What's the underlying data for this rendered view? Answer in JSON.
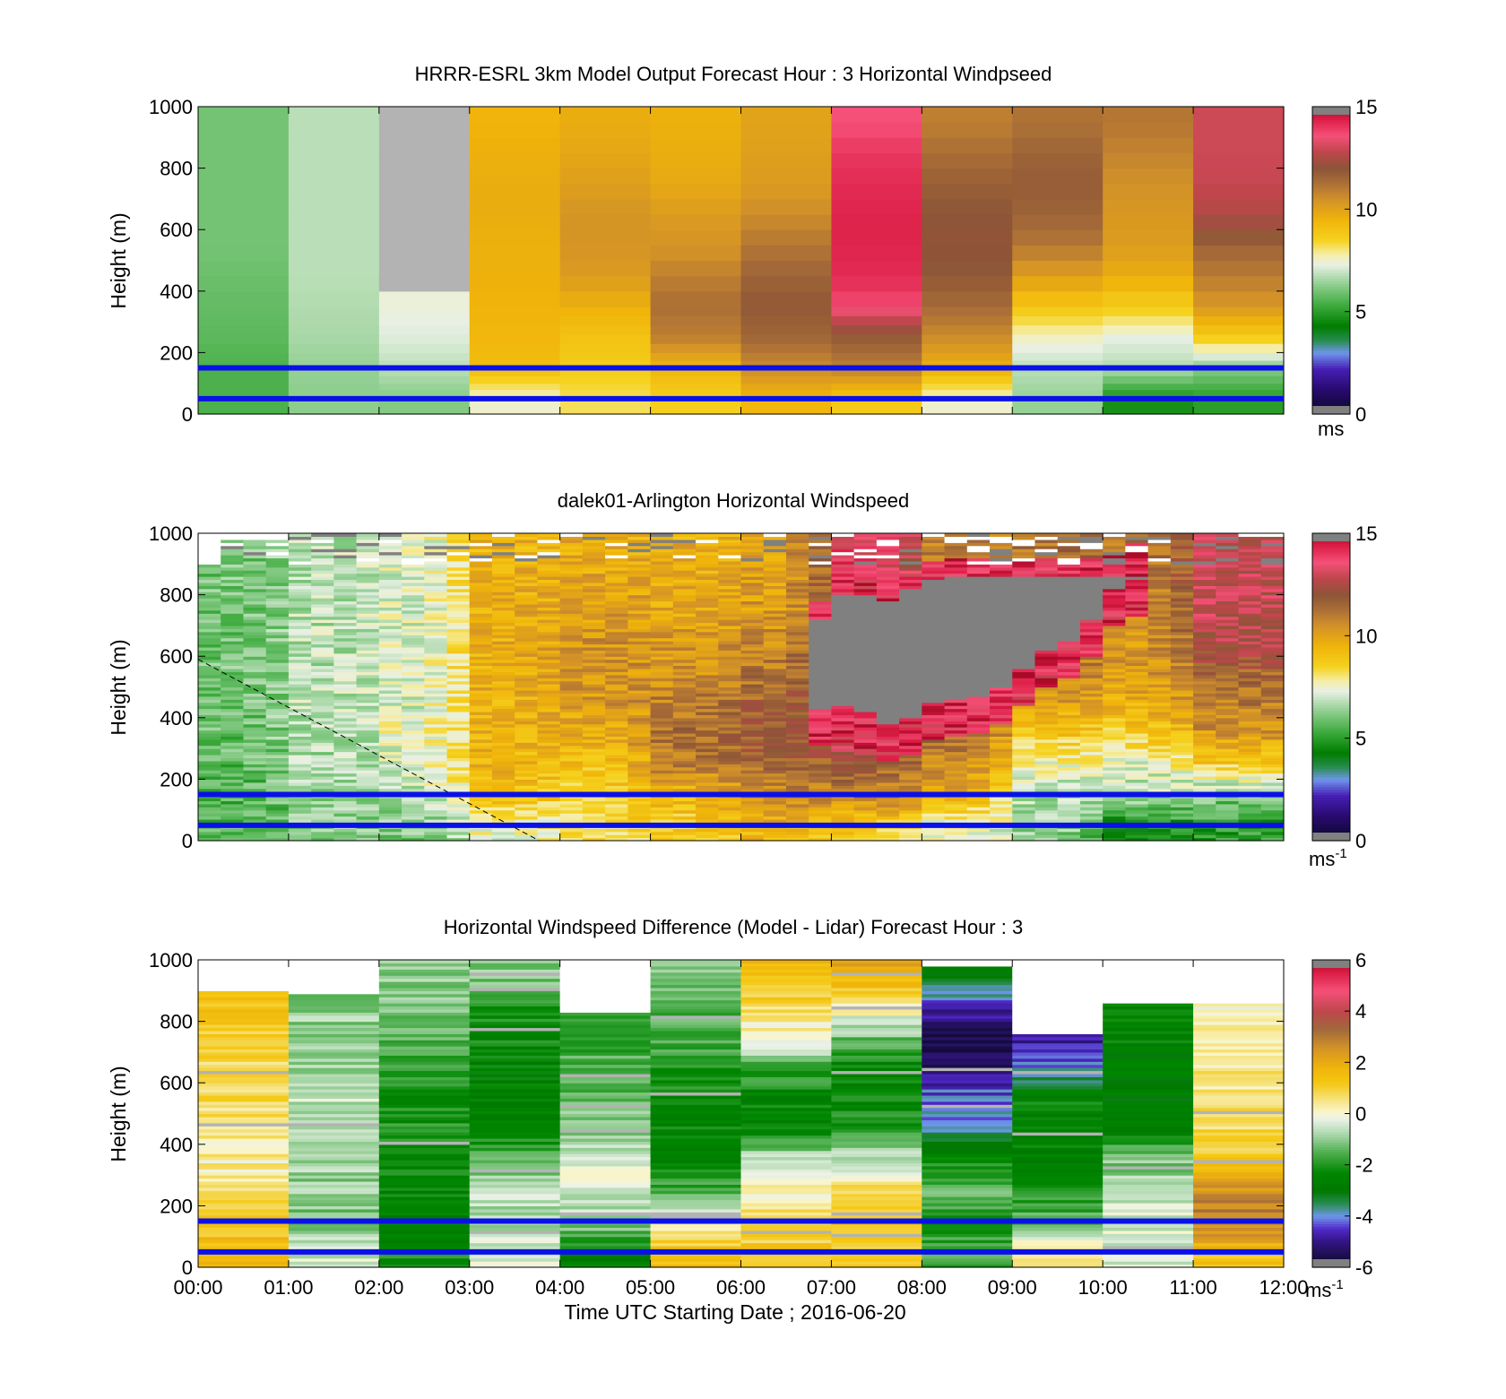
{
  "chart_data": [
    {
      "type": "heatmap",
      "title": "HRRR-ESRL 3km Model Output   Forecast Hour : 3 Horizontal Windpseed",
      "ylabel": "Height (m)",
      "xlabel": "",
      "ylim": [
        0,
        1000
      ],
      "xlim_hours": [
        0,
        12
      ],
      "yticks": [
        "0",
        "200",
        "400",
        "600",
        "800",
        "1000"
      ],
      "colorbar": {
        "range": [
          0,
          15
        ],
        "ticks": [
          "0",
          "5",
          "10",
          "15"
        ],
        "unit": "ms",
        "unit_sup": "",
        "scale": "speed"
      },
      "reference_lines_m": [
        150,
        50
      ],
      "time_columns": [
        "00:00",
        "01:00",
        "02:00",
        "03:00",
        "04:00",
        "05:00",
        "06:00",
        "07:00",
        "08:00",
        "09:00",
        "10:00",
        "11:00"
      ],
      "column_profiles_ms": [
        [
          5.5,
          5.5,
          5.7,
          5.8,
          5.9,
          6.0,
          6.0,
          6.0,
          6.0,
          6.0
        ],
        [
          6.3,
          6.4,
          6.6,
          6.7,
          6.8,
          6.8,
          6.8,
          6.8,
          6.8,
          6.8
        ],
        [
          6.2,
          6.8,
          7.2,
          7.4,
          "gap",
          "gap",
          "gap",
          "gap",
          "gap",
          "gap"
        ],
        [
          7.5,
          9.2,
          9.4,
          9.5,
          9.6,
          9.6,
          9.7,
          9.7,
          9.6,
          9.5
        ],
        [
          8.2,
          8.7,
          9.0,
          9.6,
          10.2,
          10.4,
          10.4,
          10.1,
          9.9,
          9.7
        ],
        [
          8.6,
          9.4,
          10.9,
          11.3,
          10.9,
          10.4,
          10.2,
          9.8,
          9.7,
          9.6
        ],
        [
          9.4,
          10.6,
          11.5,
          11.9,
          11.6,
          11.1,
          10.6,
          10.2,
          10.1,
          10.0
        ],
        [
          8.8,
          10.9,
          11.8,
          13.7,
          14.2,
          14.3,
          14.3,
          14.2,
          14.0,
          13.6
        ],
        [
          7.5,
          9.6,
          10.6,
          11.4,
          11.9,
          12.1,
          12.0,
          11.7,
          11.3,
          10.9
        ],
        [
          6.4,
          6.8,
          7.6,
          8.9,
          10.1,
          11.1,
          11.6,
          11.8,
          11.6,
          11.2
        ],
        [
          4.7,
          6.7,
          7.3,
          8.7,
          9.7,
          10.2,
          10.3,
          10.5,
          10.8,
          11.1
        ],
        [
          5.0,
          6.2,
          8.7,
          10.3,
          11.0,
          11.6,
          12.6,
          12.9,
          13.0,
          13.0
        ]
      ]
    },
    {
      "type": "heatmap",
      "title": "dalek01-Arlington  Horizontal Windspeed",
      "ylabel": "Height (m)",
      "xlabel": "",
      "ylim": [
        0,
        1000
      ],
      "xlim_hours": [
        0,
        12
      ],
      "yticks": [
        "0",
        "200",
        "400",
        "600",
        "800",
        "1000"
      ],
      "colorbar": {
        "range": [
          0,
          15
        ],
        "ticks": [
          "0",
          "5",
          "10",
          "15"
        ],
        "unit": "ms",
        "unit_sup": "-1",
        "scale": "speed"
      },
      "reference_lines_m": [
        150,
        50
      ],
      "time_bins_per_hour": 4,
      "max_valid_height_m": [
        900,
        980,
        980,
        980,
        1000,
        1000,
        1000,
        1000,
        1000,
        1000,
        1000,
        1000,
        1000,
        1000,
        1000,
        1000,
        1000,
        1000,
        1000,
        1000,
        1000,
        1000,
        1000,
        1000,
        1000,
        1000,
        1000,
        1000,
        1000,
        1000,
        1000,
        1000,
        1000,
        1000,
        1000,
        1000,
        1000,
        1000,
        1000,
        1000,
        1000,
        1000,
        1000,
        1000,
        1000,
        1000,
        1000,
        1000
      ],
      "saturated_region_top_m": [
        null,
        null,
        null,
        null,
        null,
        null,
        null,
        null,
        null,
        null,
        null,
        null,
        null,
        null,
        null,
        null,
        null,
        null,
        null,
        null,
        null,
        null,
        null,
        null,
        null,
        null,
        null,
        720,
        800,
        800,
        780,
        820,
        850,
        860,
        860,
        860,
        860,
        860,
        860,
        860,
        860,
        860,
        null,
        null,
        null,
        null,
        null,
        null
      ],
      "saturated_region_bottom_m": [
        null,
        null,
        null,
        null,
        null,
        null,
        null,
        null,
        null,
        null,
        null,
        null,
        null,
        null,
        null,
        null,
        null,
        null,
        null,
        null,
        null,
        null,
        null,
        null,
        null,
        null,
        null,
        430,
        440,
        420,
        380,
        400,
        450,
        460,
        470,
        500,
        560,
        620,
        650,
        720,
        820,
        850,
        null,
        null,
        null,
        null,
        null,
        null
      ],
      "note_dashed_line": true
    },
    {
      "type": "heatmap",
      "title": "Horizontal Windspeed Difference (Model - Lidar) Forecast Hour : 3",
      "ylabel": "Height (m)",
      "xlabel": "Time UTC  Starting Date ; 2016-06-20",
      "ylim": [
        0,
        1000
      ],
      "xlim_hours": [
        0,
        12
      ],
      "yticks": [
        "0",
        "200",
        "400",
        "600",
        "800",
        "1000"
      ],
      "xticks": [
        "00:00",
        "01:00",
        "02:00",
        "03:00",
        "04:00",
        "05:00",
        "06:00",
        "07:00",
        "08:00",
        "09:00",
        "10:00",
        "11:00",
        "12:00"
      ],
      "colorbar": {
        "range": [
          -6,
          6
        ],
        "ticks": [
          "-6",
          "-4",
          "-2",
          "0",
          "2",
          "4",
          "6"
        ],
        "unit": "ms",
        "unit_sup": "-1",
        "scale": "diff"
      },
      "reference_lines_m": [
        150,
        50
      ],
      "column_top_m": [
        900,
        890,
        1000,
        1000,
        830,
        1000,
        1000,
        1000,
        980,
        760,
        860,
        860
      ],
      "column_profiles_ms": [
        [
          1.5,
          1.3,
          0.5,
          0.3,
          0.6,
          0.7,
          0.8,
          1.0,
          1.2,
          1.4
        ],
        [
          -0.5,
          -1.2,
          -1.0,
          -0.8,
          -0.5,
          -0.6,
          -0.8,
          -0.9,
          -1.0,
          -1.0
        ],
        [
          -2.2,
          -2.6,
          -2.5,
          -2.2,
          -2.0,
          -2.1,
          -1.8,
          -1.5,
          -1.2,
          -1.0
        ],
        [
          -0.4,
          -0.9,
          -0.6,
          -1.6,
          -2.4,
          -2.7,
          -2.6,
          -2.2,
          -2.0,
          -1.0
        ],
        [
          -2.5,
          -0.8,
          -0.3,
          -0.5,
          -1.0,
          -1.3,
          -1.5,
          -1.7,
          -1.8,
          -1.9
        ],
        [
          1.5,
          -0.2,
          -1.5,
          -2.5,
          -2.4,
          -2.3,
          -2.0,
          -1.6,
          -1.4,
          -1.2
        ],
        [
          1.2,
          0.8,
          0.2,
          -0.5,
          -2.4,
          -2.5,
          -1.6,
          0.0,
          0.8,
          1.5
        ],
        [
          1.3,
          1.5,
          0.8,
          -0.6,
          -1.8,
          -2.3,
          -2.5,
          -1.2,
          0.3,
          2.0
        ],
        [
          -1.5,
          -2.0,
          -1.5,
          -2.0,
          -3.8,
          -4.1,
          -5.2,
          -5.6,
          -4.5,
          -3.0
        ],
        [
          0.3,
          -1.5,
          -2.1,
          -2.5,
          -2.6,
          -2.3,
          -4.2,
          -5.0,
          "gap",
          "gap"
        ],
        [
          -0.5,
          -0.4,
          -0.6,
          -1.2,
          -2.6,
          -2.8,
          -2.6,
          -2.5,
          -2.4,
          "gap"
        ],
        [
          1.3,
          3.0,
          2.5,
          1.2,
          0.8,
          0.5,
          0.5,
          0.3,
          0.2,
          0.0
        ]
      ]
    }
  ]
}
